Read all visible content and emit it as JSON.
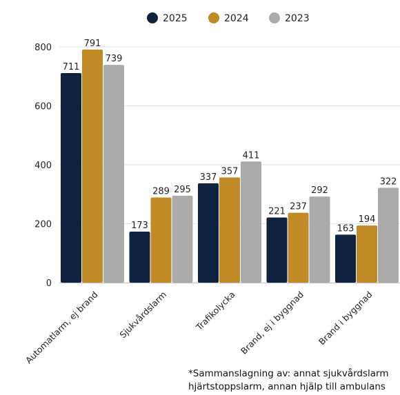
{
  "chart_data": {
    "type": "bar",
    "categories": [
      "Automatlarm, ej brand",
      "Sjukvårdslarm",
      "Trafikolycka",
      "Brand, ej i byggnad",
      "Brand i byggnad"
    ],
    "series": [
      {
        "name": "2025",
        "values": [
          711,
          173,
          337,
          221,
          163
        ],
        "color": "#0f2340"
      },
      {
        "name": "2024",
        "values": [
          791,
          289,
          357,
          237,
          194
        ],
        "color": "#c08a27"
      },
      {
        "name": "2023",
        "values": [
          739,
          295,
          411,
          292,
          322
        ],
        "color": "#ababab"
      }
    ],
    "yticks": [
      0,
      200,
      400,
      600,
      800
    ],
    "ylim": [
      0,
      800
    ],
    "grid": true,
    "legend": "top-center",
    "footnote_lines": [
      "*Sammanslagning av: annat sjukvårdslarm",
      "hjärtstoppslarm, annan hjälp till ambulans"
    ]
  }
}
